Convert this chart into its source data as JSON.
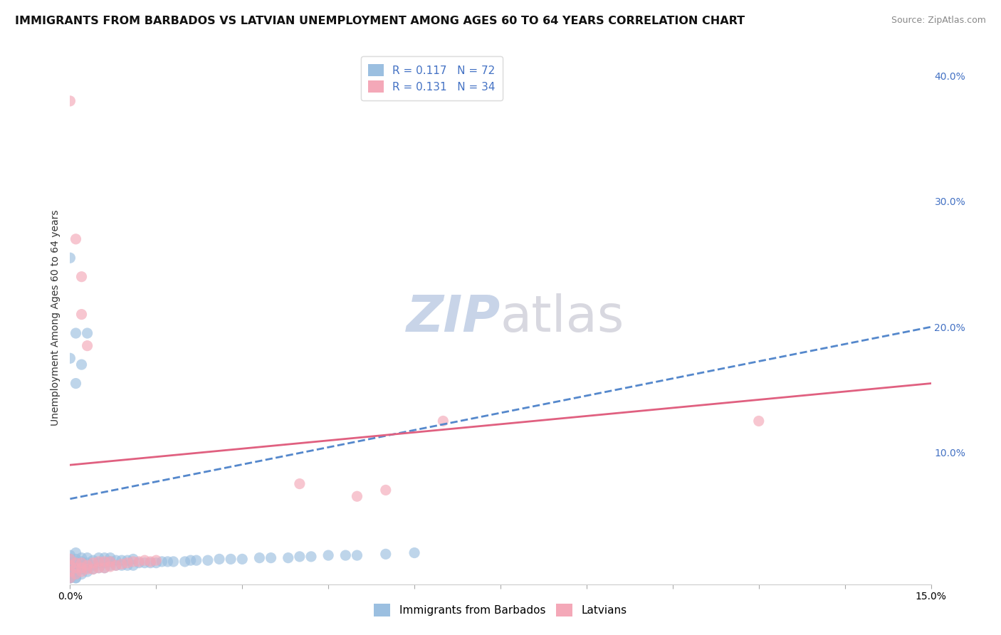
{
  "title": "IMMIGRANTS FROM BARBADOS VS LATVIAN UNEMPLOYMENT AMONG AGES 60 TO 64 YEARS CORRELATION CHART",
  "source": "Source: ZipAtlas.com",
  "ylabel": "Unemployment Among Ages 60 to 64 years",
  "xlim": [
    0.0,
    0.15
  ],
  "ylim": [
    -0.005,
    0.42
  ],
  "xticks": [
    0.0,
    0.015,
    0.03,
    0.045,
    0.06,
    0.075,
    0.09,
    0.105,
    0.12,
    0.135,
    0.15
  ],
  "xticklabels_show": {
    "0.0": "0.0%",
    "0.15": "15.0%"
  },
  "yticks_right": [
    0.1,
    0.2,
    0.3,
    0.4
  ],
  "yticklabels_right": [
    "10.0%",
    "20.0%",
    "30.0%",
    "40.0%"
  ],
  "legend_items": [
    {
      "label": "R = 0.117   N = 72",
      "color": "#aec6e8"
    },
    {
      "label": "R = 0.131   N = 34",
      "color": "#f4b8c1"
    }
  ],
  "legend_labels_bottom": [
    "Immigrants from Barbados",
    "Latvians"
  ],
  "watermark_zip": "ZIP",
  "watermark_atlas": "atlas",
  "blue_scatter_x": [
    0.0,
    0.0,
    0.0,
    0.0,
    0.0,
    0.0,
    0.0,
    0.0,
    0.0,
    0.001,
    0.001,
    0.001,
    0.001,
    0.001,
    0.001,
    0.001,
    0.001,
    0.001,
    0.002,
    0.002,
    0.002,
    0.002,
    0.002,
    0.003,
    0.003,
    0.003,
    0.003,
    0.004,
    0.004,
    0.004,
    0.005,
    0.005,
    0.005,
    0.006,
    0.006,
    0.006,
    0.007,
    0.007,
    0.007,
    0.008,
    0.008,
    0.009,
    0.009,
    0.01,
    0.01,
    0.011,
    0.011,
    0.012,
    0.013,
    0.014,
    0.015,
    0.016,
    0.017,
    0.018,
    0.02,
    0.021,
    0.022,
    0.024,
    0.026,
    0.028,
    0.03,
    0.033,
    0.035,
    0.038,
    0.04,
    0.042,
    0.045,
    0.048,
    0.05,
    0.055,
    0.06
  ],
  "blue_scatter_y": [
    0.0,
    0.0,
    0.0,
    0.005,
    0.008,
    0.01,
    0.012,
    0.015,
    0.018,
    0.0,
    0.0,
    0.003,
    0.005,
    0.007,
    0.01,
    0.012,
    0.015,
    0.02,
    0.003,
    0.007,
    0.01,
    0.013,
    0.016,
    0.005,
    0.008,
    0.012,
    0.016,
    0.007,
    0.01,
    0.014,
    0.008,
    0.012,
    0.016,
    0.008,
    0.012,
    0.016,
    0.01,
    0.013,
    0.016,
    0.01,
    0.014,
    0.01,
    0.014,
    0.01,
    0.014,
    0.01,
    0.015,
    0.012,
    0.012,
    0.012,
    0.012,
    0.013,
    0.013,
    0.013,
    0.013,
    0.014,
    0.014,
    0.014,
    0.015,
    0.015,
    0.015,
    0.016,
    0.016,
    0.016,
    0.017,
    0.017,
    0.018,
    0.018,
    0.018,
    0.019,
    0.02
  ],
  "blue_outlier_x": [
    0.0,
    0.001,
    0.0,
    0.002,
    0.001,
    0.003
  ],
  "blue_outlier_y": [
    0.255,
    0.195,
    0.175,
    0.17,
    0.155,
    0.195
  ],
  "pink_scatter_x": [
    0.0,
    0.0,
    0.0,
    0.0,
    0.001,
    0.001,
    0.001,
    0.002,
    0.002,
    0.002,
    0.003,
    0.003,
    0.004,
    0.004,
    0.005,
    0.005,
    0.006,
    0.006,
    0.007,
    0.007,
    0.008,
    0.009,
    0.01,
    0.011,
    0.012,
    0.013,
    0.014,
    0.015,
    0.04,
    0.05,
    0.055,
    0.065
  ],
  "pink_scatter_y": [
    0.0,
    0.005,
    0.01,
    0.015,
    0.003,
    0.008,
    0.012,
    0.005,
    0.008,
    0.012,
    0.007,
    0.01,
    0.007,
    0.012,
    0.008,
    0.013,
    0.008,
    0.013,
    0.009,
    0.013,
    0.01,
    0.011,
    0.012,
    0.013,
    0.013,
    0.014,
    0.013,
    0.014,
    0.075,
    0.065,
    0.07,
    0.125
  ],
  "pink_outlier_x": [
    0.0,
    0.001,
    0.002,
    0.002,
    0.003,
    0.12
  ],
  "pink_outlier_y": [
    0.38,
    0.27,
    0.24,
    0.21,
    0.185,
    0.125
  ],
  "blue_line_x": [
    0.0,
    0.15
  ],
  "blue_line_y": [
    0.063,
    0.2
  ],
  "pink_line_x": [
    0.0,
    0.15
  ],
  "pink_line_y": [
    0.09,
    0.155
  ],
  "blue_color": "#9bbfe0",
  "pink_color": "#f4a8b8",
  "blue_line_color": "#5588cc",
  "pink_line_color": "#e06080",
  "scatter_alpha": 0.65,
  "scatter_size": 120,
  "grid_color": "#cccccc",
  "background_color": "#ffffff",
  "title_fontsize": 11.5,
  "source_fontsize": 9,
  "watermark_fontsize_zip": 52,
  "watermark_fontsize_atlas": 52
}
